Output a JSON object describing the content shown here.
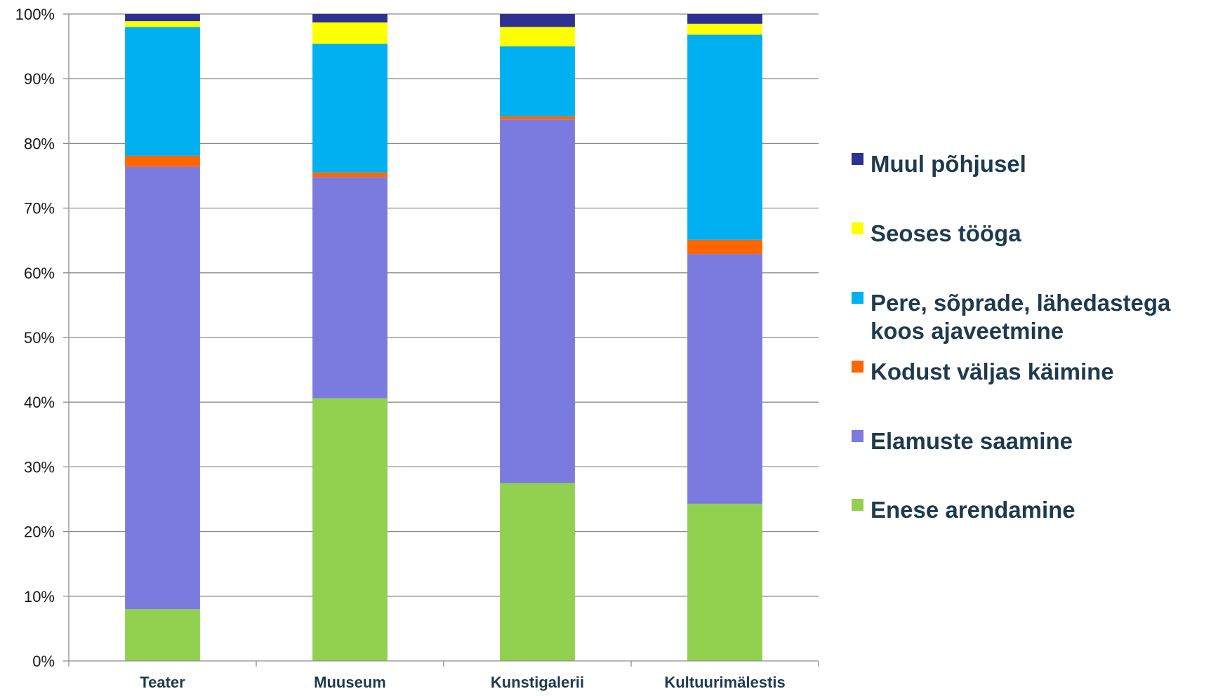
{
  "chart_data": {
    "type": "bar",
    "stacked": true,
    "percent_stacked": true,
    "categories": [
      "Teater",
      "Muuseum",
      "Kunstigalerii",
      "Kultuurimälestis"
    ],
    "series": [
      {
        "name": "Enese arendamine",
        "color": "#92d050",
        "values": [
          8.0,
          40.6,
          27.5,
          24.3
        ]
      },
      {
        "name": "Elamuste saamine",
        "color": "#7b7bdf",
        "values": [
          68.4,
          34.2,
          56.2,
          38.6
        ]
      },
      {
        "name": "Kodust väljas käimine",
        "color": "#ff6600",
        "values": [
          1.7,
          0.7,
          0.5,
          2.2
        ]
      },
      {
        "name": "Pere, sõprade, lähedastega koos ajaveetmine",
        "color": "#00b0f0",
        "values": [
          19.9,
          19.9,
          10.8,
          31.7
        ]
      },
      {
        "name": "Seoses tööga",
        "color": "#ffff00",
        "values": [
          0.9,
          3.3,
          3.0,
          1.7
        ]
      },
      {
        "name": "Muul põhjusel",
        "color": "#2e3192",
        "values": [
          1.1,
          1.3,
          2.0,
          1.5
        ]
      }
    ],
    "yticks": [
      "0%",
      "10%",
      "20%",
      "30%",
      "40%",
      "50%",
      "60%",
      "70%",
      "80%",
      "90%",
      "100%"
    ],
    "ylim": [
      0,
      100
    ],
    "grid": true,
    "legend_position": "right",
    "legend": [
      {
        "lines": [
          "Muul põhjusel"
        ],
        "color": "#2e3192"
      },
      {
        "lines": [
          "Seoses tööga"
        ],
        "color": "#ffff00"
      },
      {
        "lines": [
          "Pere, sõprade, lähedastega",
          "koos ajaveetmine"
        ],
        "color": "#00b0f0"
      },
      {
        "lines": [
          "Kodust väljas käimine"
        ],
        "color": "#ff6600"
      },
      {
        "lines": [
          "Elamuste saamine"
        ],
        "color": "#7b7bdf"
      },
      {
        "lines": [
          "Enese arendamine"
        ],
        "color": "#92d050"
      }
    ]
  }
}
